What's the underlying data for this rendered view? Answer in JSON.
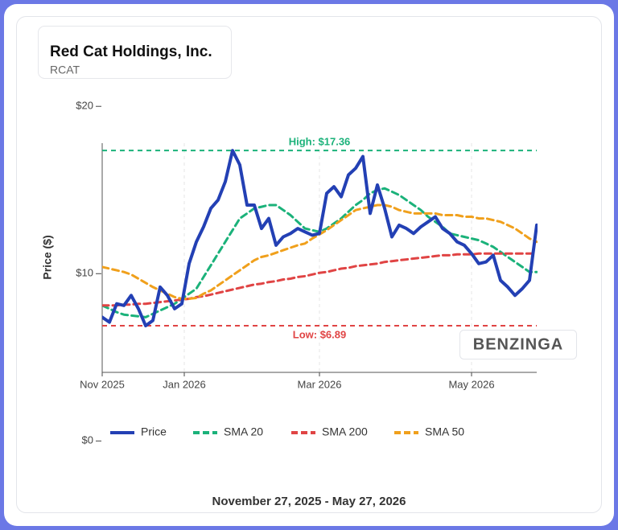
{
  "chart_data": {
    "type": "line",
    "title": "Red Cat Holdings, Inc.",
    "subtitle": "RCAT",
    "y_label": "Price ($)",
    "caption": "November 27, 2025 - May 27, 2026",
    "watermark": "BENZINGA",
    "x": [
      0,
      3,
      6,
      9,
      12,
      15,
      18,
      21,
      24,
      27,
      30,
      33,
      36,
      39,
      42,
      45,
      48,
      51,
      54,
      57,
      60,
      63,
      66,
      69,
      72,
      75,
      78,
      81,
      84,
      87,
      90,
      93,
      96,
      99,
      102,
      105,
      108,
      111,
      114,
      117,
      120,
      123,
      126,
      129,
      132,
      135,
      138,
      141,
      144,
      147,
      150,
      153,
      156,
      159,
      162,
      165,
      168,
      171,
      174,
      177,
      180
    ],
    "xlim": [
      0,
      180
    ],
    "xticks": [
      {
        "value": 0,
        "label": "Nov 2025"
      },
      {
        "value": 34,
        "label": "Jan 2026"
      },
      {
        "value": 90,
        "label": "Mar 2026"
      },
      {
        "value": 153,
        "label": "May 2026"
      }
    ],
    "ylim": [
      4.1,
      17.8
    ],
    "yticks": [
      {
        "value": 0,
        "label": "$0"
      },
      {
        "value": 10,
        "label": "$10"
      },
      {
        "value": 20,
        "label": "$20"
      }
    ],
    "grid": true,
    "series": [
      {
        "name": "Price",
        "color": "#2340b4",
        "dashed": false,
        "values": [
          7.4,
          7.1,
          8.2,
          8.1,
          8.7,
          7.9,
          6.89,
          7.2,
          9.2,
          8.7,
          7.9,
          8.2,
          10.6,
          11.9,
          12.8,
          13.9,
          14.4,
          15.5,
          17.36,
          16.5,
          14.1,
          14.1,
          12.7,
          13.3,
          11.7,
          12.2,
          12.4,
          12.7,
          12.5,
          12.3,
          12.4,
          14.8,
          15.2,
          14.6,
          15.9,
          16.3,
          17.0,
          13.6,
          15.3,
          13.9,
          12.2,
          12.9,
          12.7,
          12.4,
          12.8,
          13.1,
          13.4,
          12.7,
          12.4,
          11.9,
          11.7,
          11.2,
          10.6,
          10.7,
          11.1,
          9.6,
          9.2,
          8.7,
          9.1,
          9.6,
          12.9
        ]
      },
      {
        "name": "SMA 20",
        "color": "#1bb27a",
        "dashed": true,
        "values": [
          8.1,
          7.9,
          7.7,
          7.55,
          7.5,
          7.45,
          7.4,
          7.6,
          7.8,
          8.0,
          8.2,
          8.5,
          8.8,
          9.1,
          9.8,
          10.5,
          11.2,
          11.9,
          12.6,
          13.3,
          13.6,
          13.9,
          14.0,
          14.1,
          14.1,
          13.8,
          13.5,
          13.1,
          12.7,
          12.6,
          12.5,
          12.7,
          13.0,
          13.3,
          13.7,
          14.1,
          14.4,
          14.8,
          15.0,
          15.1,
          14.9,
          14.7,
          14.4,
          14.1,
          13.8,
          13.4,
          13.1,
          12.8,
          12.4,
          12.3,
          12.2,
          12.1,
          12.0,
          11.8,
          11.6,
          11.3,
          11.0,
          10.7,
          10.4,
          10.1,
          10.1
        ]
      },
      {
        "name": "SMA 200",
        "color": "#e04444",
        "dashed": true,
        "values": [
          8.1,
          8.1,
          8.1,
          8.15,
          8.15,
          8.2,
          8.2,
          8.25,
          8.3,
          8.35,
          8.4,
          8.45,
          8.5,
          8.6,
          8.65,
          8.75,
          8.85,
          8.95,
          9.05,
          9.15,
          9.25,
          9.35,
          9.4,
          9.5,
          9.55,
          9.65,
          9.7,
          9.8,
          9.85,
          9.95,
          10.05,
          10.1,
          10.2,
          10.3,
          10.35,
          10.45,
          10.5,
          10.55,
          10.6,
          10.7,
          10.75,
          10.8,
          10.85,
          10.9,
          10.95,
          11.0,
          11.05,
          11.1,
          11.1,
          11.15,
          11.15,
          11.15,
          11.2,
          11.2,
          11.2,
          11.2,
          11.2,
          11.2,
          11.2,
          11.2,
          11.2
        ]
      },
      {
        "name": "SMA 50",
        "color": "#f0a01c",
        "dashed": true,
        "values": [
          10.4,
          10.3,
          10.2,
          10.1,
          9.95,
          9.7,
          9.45,
          9.2,
          9.0,
          8.8,
          8.6,
          8.5,
          8.5,
          8.55,
          8.8,
          9.0,
          9.3,
          9.6,
          9.9,
          10.2,
          10.5,
          10.8,
          11.0,
          11.1,
          11.25,
          11.4,
          11.55,
          11.7,
          11.8,
          12.1,
          12.35,
          12.6,
          12.9,
          13.2,
          13.5,
          13.8,
          13.9,
          14.0,
          14.1,
          14.1,
          14.0,
          13.8,
          13.7,
          13.6,
          13.6,
          13.6,
          13.6,
          13.5,
          13.5,
          13.5,
          13.4,
          13.4,
          13.3,
          13.3,
          13.2,
          13.1,
          12.9,
          12.7,
          12.4,
          12.1,
          11.9
        ]
      }
    ],
    "reference_lines": [
      {
        "value": 17.36,
        "label": "High: $17.36",
        "color": "#1bb27a"
      },
      {
        "value": 6.89,
        "label": "Low: $6.89",
        "color": "#e04444"
      }
    ]
  }
}
